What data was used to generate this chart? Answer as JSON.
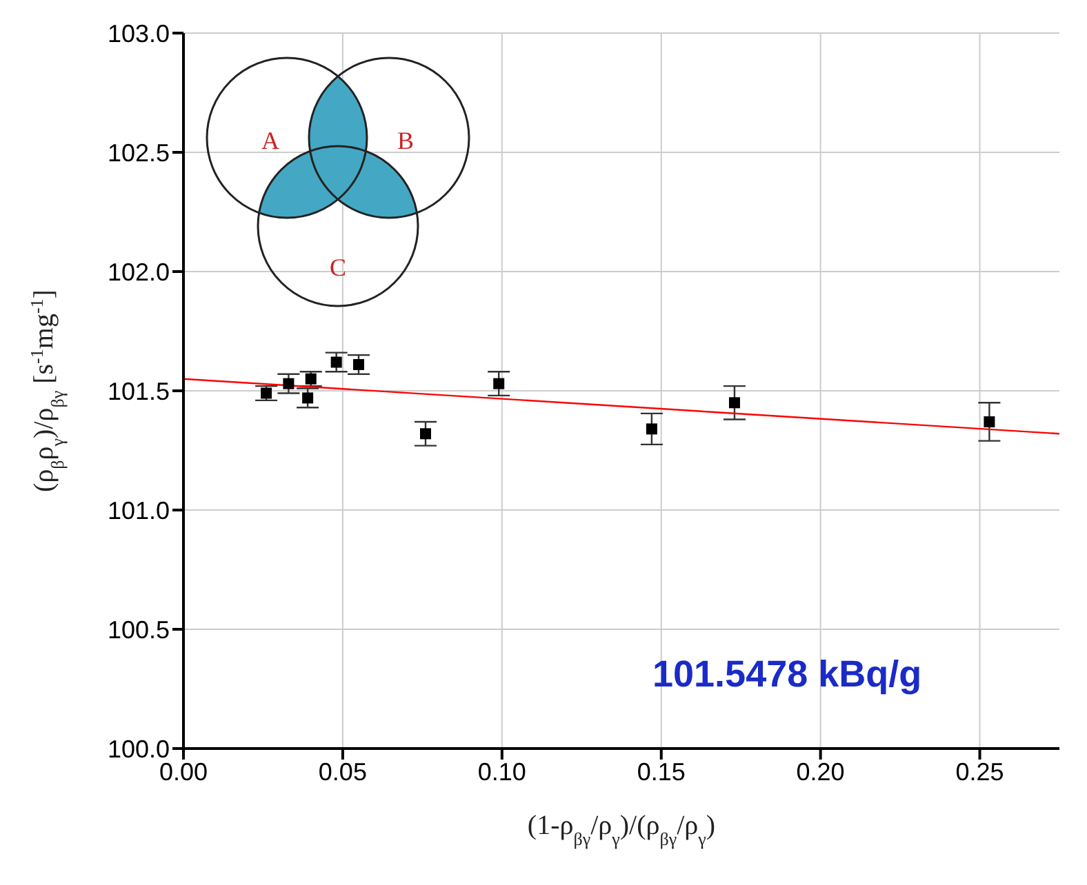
{
  "chart_data": {
    "type": "scatter",
    "xlabel": "(1-ρ$_{βγ}$/ρ$_{γ}$)/(ρ$_{βγ}$/ρ$_{γ}$)",
    "ylabel": "(ρ$_{β}$ρ$_{γ}$)/ρ$_{βγ}$  [s$^{-1}$mg$^{-1}$]",
    "x": [
      0.026,
      0.033,
      0.039,
      0.04,
      0.048,
      0.055,
      0.076,
      0.099,
      0.147,
      0.173,
      0.253
    ],
    "series": [
      {
        "color": "#000000",
        "marker": "square",
        "values": [
          101.49,
          101.53,
          101.47,
          101.55,
          101.62,
          101.61,
          101.32,
          101.53,
          101.34,
          101.45,
          101.37
        ],
        "errors": [
          0.03,
          0.04,
          0.04,
          0.03,
          0.04,
          0.04,
          0.05,
          0.05,
          0.065,
          0.07,
          0.08
        ]
      },
      {
        "type": "line",
        "color": "#ff0000",
        "x": [
          0,
          0.275
        ],
        "values": [
          101.55,
          101.32
        ]
      }
    ],
    "xlim": [
      0,
      0.275
    ],
    "xticks": [
      {
        "value": 0,
        "label": "0.00"
      },
      0.05,
      {
        "value": 0.1,
        "label": "0.10"
      },
      0.15,
      {
        "value": 0.2,
        "label": "0.20"
      },
      0.25
    ],
    "ylim": [
      100,
      103
    ],
    "yticks": [
      {
        "value": 100,
        "label": "100.0"
      },
      100.5,
      {
        "value": 101,
        "label": "101.0"
      },
      101.5,
      {
        "value": 102,
        "label": "102.0"
      },
      102.5,
      {
        "value": 103,
        "label": "103.0"
      }
    ],
    "grid": true,
    "annotations": [
      "A",
      "B",
      "C",
      "101.5478 kBq/g"
    ]
  }
}
